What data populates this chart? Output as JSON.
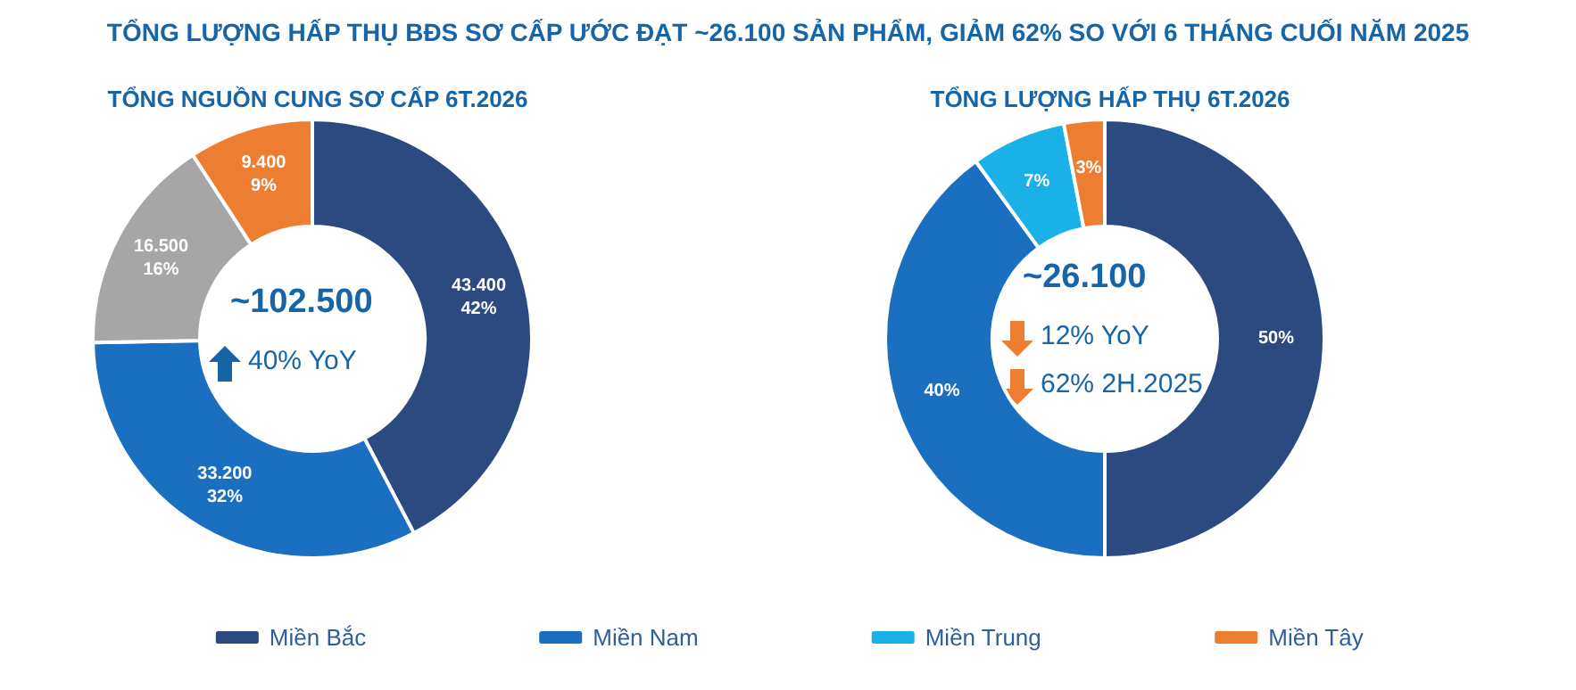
{
  "chart_data": [
    {
      "type": "donut",
      "title": "TỔNG LƯỢNG HẤP THỤ BĐS SƠ CẤP ƯỚC ĐẠT ~26.100 SẢN PHẨM, GIẢM 62% SO VỚI 6 THÁNG CUỐI NĂM 2025",
      "subtitle": "TỔNG NGUỒN CUNG SƠ CẤP 6T.2026",
      "categories": [
        null,
        null,
        null,
        null
      ],
      "values": [
        43400,
        33200,
        16500,
        9400
      ],
      "colors": [
        "#2b4a80",
        "#1a6fc0",
        "#a6a6a6",
        "#ed7d31"
      ],
      "value_labels": [
        "43.400\n42%",
        "33.200\n32%",
        "16.500\n16%",
        "9.400\n9%"
      ],
      "annotations": [
        "~102.500",
        "40% YoY"
      ],
      "legend": false
    },
    {
      "type": "donut",
      "title": "TỔNG LƯỢNG HẤP THỤ 6T.2026",
      "categories": [
        "Miền Bắc",
        "Miền Nam",
        "Miền Trung",
        "Miền Tây"
      ],
      "values": [
        50,
        40,
        7,
        3
      ],
      "colors": [
        "#2b4a80",
        "#1a6fc0",
        "#1ab0e8",
        "#ed7d31"
      ],
      "value_labels": [
        "50%",
        "40%",
        "7%",
        "3%"
      ],
      "annotations": [
        "~26.100",
        "12% YoY",
        "62% 2H.2025"
      ],
      "legend": "bottom"
    }
  ]
}
